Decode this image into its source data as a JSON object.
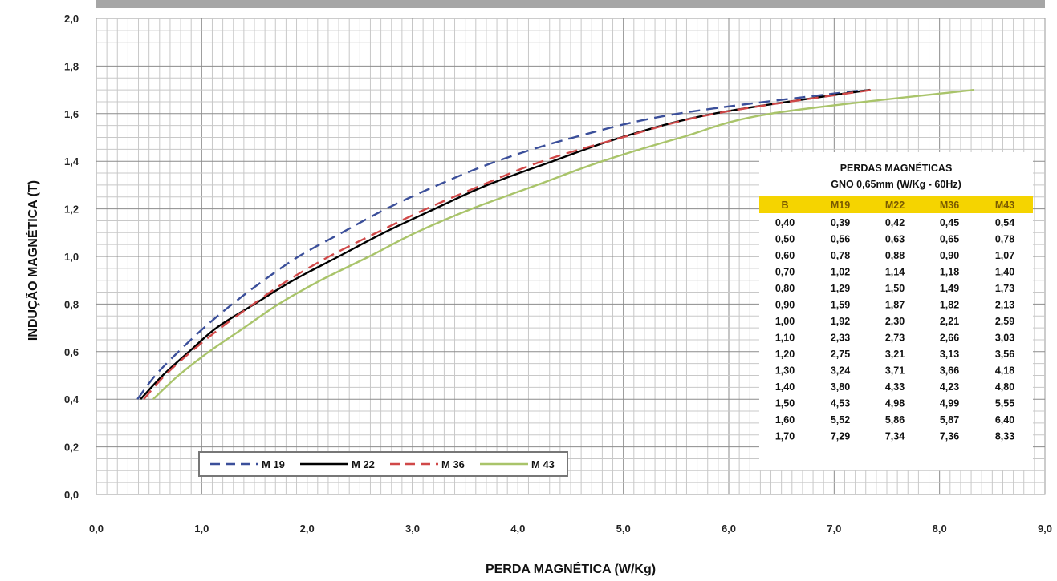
{
  "chart_data": {
    "type": "line",
    "title": "",
    "xlabel": "PERDA MAGNÉTICA (W/Kg)",
    "ylabel": "INDUÇÃO MAGNÉTICA (T)",
    "xlim": [
      0,
      9
    ],
    "ylim": [
      0,
      2
    ],
    "x_ticks": [
      "0,0",
      "1,0",
      "2,0",
      "3,0",
      "4,0",
      "5,0",
      "6,0",
      "7,0",
      "8,0",
      "9,0"
    ],
    "y_ticks": [
      "0,0",
      "0,2",
      "0,4",
      "0,6",
      "0,8",
      "1,0",
      "1,2",
      "1,4",
      "1,6",
      "1,8",
      "2,0"
    ],
    "grid": true,
    "legend_placement": "bottom-left",
    "y": [
      0.4,
      0.5,
      0.6,
      0.7,
      0.8,
      0.9,
      1.0,
      1.1,
      1.2,
      1.3,
      1.4,
      1.5,
      1.6,
      1.7
    ],
    "series": [
      {
        "name": "M 19",
        "color": "#3b4f9a",
        "dash": "dashed",
        "x": [
          0.39,
          0.56,
          0.78,
          1.02,
          1.29,
          1.59,
          1.92,
          2.33,
          2.75,
          3.24,
          3.8,
          4.53,
          5.52,
          7.29
        ]
      },
      {
        "name": "M 22",
        "color": "#000000",
        "dash": "solid",
        "x": [
          0.42,
          0.63,
          0.88,
          1.14,
          1.5,
          1.87,
          2.3,
          2.73,
          3.21,
          3.71,
          4.33,
          4.98,
          5.86,
          7.34
        ]
      },
      {
        "name": "M 36",
        "color": "#d04848",
        "dash": "dashed",
        "x": [
          0.45,
          0.65,
          0.9,
          1.18,
          1.49,
          1.82,
          2.21,
          2.66,
          3.13,
          3.66,
          4.23,
          4.99,
          5.87,
          7.36
        ]
      },
      {
        "name": "M 43",
        "color": "#a9c46a",
        "dash": "solid",
        "x": [
          0.54,
          0.78,
          1.07,
          1.4,
          1.73,
          2.13,
          2.59,
          3.03,
          3.56,
          4.18,
          4.8,
          5.55,
          6.4,
          8.33
        ]
      }
    ]
  },
  "table": {
    "title_line1": "PERDAS MAGNÉTICAS",
    "title_line2": "GNO 0,65mm (W/Kg - 60Hz)",
    "header_color": "#f5d400",
    "headers": [
      "B",
      "M19",
      "M22",
      "M36",
      "M43"
    ],
    "rows": [
      [
        "0,40",
        "0,39",
        "0,42",
        "0,45",
        "0,54"
      ],
      [
        "0,50",
        "0,56",
        "0,63",
        "0,65",
        "0,78"
      ],
      [
        "0,60",
        "0,78",
        "0,88",
        "0,90",
        "1,07"
      ],
      [
        "0,70",
        "1,02",
        "1,14",
        "1,18",
        "1,40"
      ],
      [
        "0,80",
        "1,29",
        "1,50",
        "1,49",
        "1,73"
      ],
      [
        "0,90",
        "1,59",
        "1,87",
        "1,82",
        "2,13"
      ],
      [
        "1,00",
        "1,92",
        "2,30",
        "2,21",
        "2,59"
      ],
      [
        "1,10",
        "2,33",
        "2,73",
        "2,66",
        "3,03"
      ],
      [
        "1,20",
        "2,75",
        "3,21",
        "3,13",
        "3,56"
      ],
      [
        "1,30",
        "3,24",
        "3,71",
        "3,66",
        "4,18"
      ],
      [
        "1,40",
        "3,80",
        "4,33",
        "4,23",
        "4,80"
      ],
      [
        "1,50",
        "4,53",
        "4,98",
        "4,99",
        "5,55"
      ],
      [
        "1,60",
        "5,52",
        "5,86",
        "5,87",
        "6,40"
      ],
      [
        "1,70",
        "7,29",
        "7,34",
        "7,36",
        "8,33"
      ]
    ]
  }
}
